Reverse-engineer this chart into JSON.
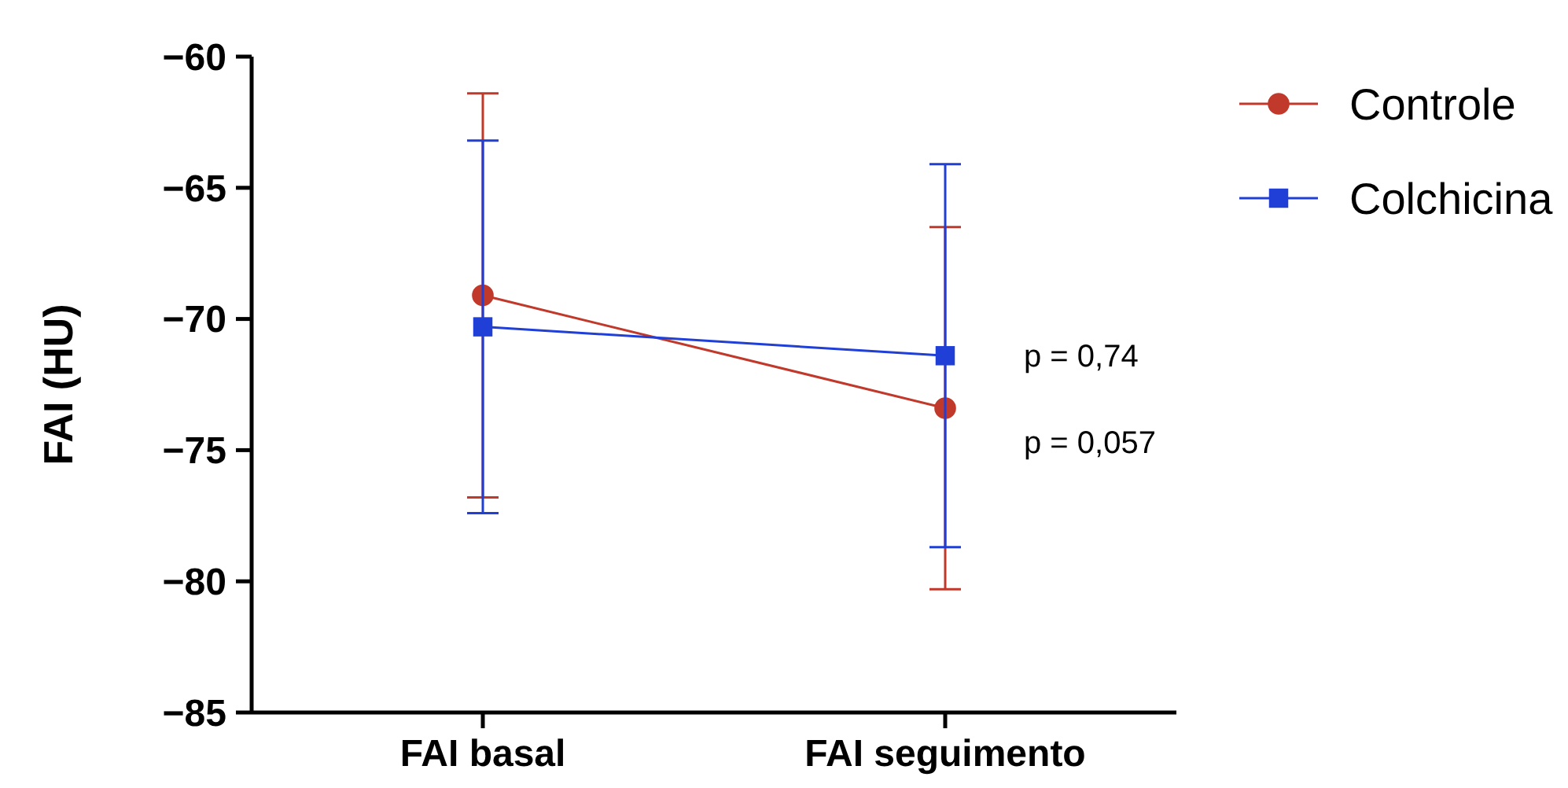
{
  "chart_data": {
    "type": "line",
    "ylabel": "FAI (HU)",
    "categories": [
      "FAI basal",
      "FAI seguimento"
    ],
    "series": [
      {
        "name": "Controle",
        "color": "#c0392b",
        "marker": "circle",
        "values": [
          -69.1,
          -73.4
        ],
        "errors": [
          [
            -76.8,
            -61.4
          ],
          [
            -80.3,
            -66.5
          ]
        ]
      },
      {
        "name": "Colchicina",
        "color": "#1f3fd6",
        "marker": "square",
        "values": [
          -70.3,
          -71.4
        ],
        "errors": [
          [
            -77.4,
            -63.2
          ],
          [
            -78.7,
            -64.1
          ]
        ]
      }
    ],
    "ylim": [
      -85,
      -60
    ],
    "yticks": [
      -85,
      -80,
      -75,
      -70,
      -65,
      -60
    ],
    "grid": false,
    "legend": "top right",
    "annotations": [
      {
        "text": "p = 0,74",
        "x": "FAI seguimento",
        "y": -71.4
      },
      {
        "text": "p = 0,057",
        "x": "FAI seguimento",
        "y": -74.7
      }
    ]
  }
}
